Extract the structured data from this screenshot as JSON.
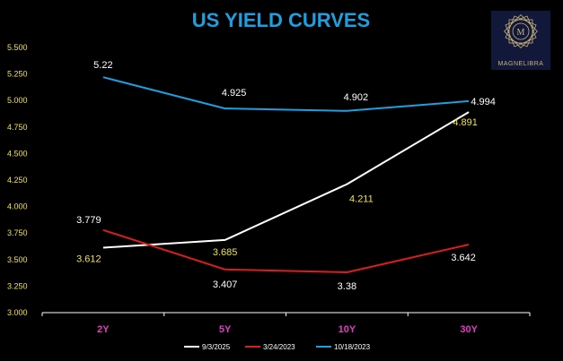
{
  "logo": {
    "text": "MAGNELIBRA",
    "mark": "M",
    "icon": "magnelibra-star-logo"
  },
  "colors": {
    "background": "#000000",
    "title": "#1e9fe0",
    "ytick": "#f2e24a",
    "xtick": "#e23bc4",
    "axis": "#ffffff",
    "logo_bg": "#12183a",
    "logo_gold": "#c9b27a"
  },
  "chart_data": {
    "type": "line",
    "title": "US YIELD CURVES",
    "categories": [
      "2Y",
      "5Y",
      "10Y",
      "30Y"
    ],
    "ylim": [
      3.0,
      5.5
    ],
    "yticks": [
      "3.000",
      "3.250",
      "3.500",
      "3.750",
      "4.000",
      "4.250",
      "4.500",
      "4.750",
      "5.000",
      "5.250",
      "5.500"
    ],
    "grid": false,
    "legend_position": "bottom",
    "series": [
      {
        "name": "9/3/2025",
        "color": "#ffffff",
        "label_color": "#f2e24a",
        "values": [
          3.612,
          3.685,
          4.211,
          4.891
        ],
        "labels": [
          "3.612",
          "3.685",
          "4.211",
          "4.891"
        ]
      },
      {
        "name": "3/24/2023",
        "color": "#dd1c1c",
        "label_color": "#ffffff",
        "values": [
          3.779,
          3.407,
          3.38,
          3.642
        ],
        "labels": [
          "3.779",
          "3.407",
          "3.38",
          "3.642"
        ]
      },
      {
        "name": "10/18/2023",
        "color": "#1e9fe0",
        "label_color": "#ffffff",
        "values": [
          5.22,
          4.925,
          4.902,
          4.994
        ],
        "labels": [
          "5.22",
          "4.925",
          "4.902",
          "4.994"
        ]
      }
    ]
  }
}
